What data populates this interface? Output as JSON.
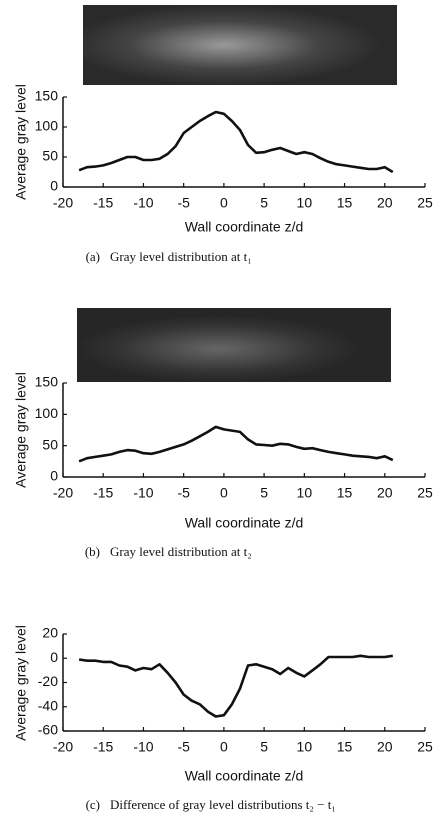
{
  "chart_data": [
    {
      "type": "line",
      "label": "(a)",
      "caption": "Gray level distribution at t₁",
      "xlabel": "Wall coordinate z/d",
      "ylabel": "Average gray level",
      "xlim": [
        -20,
        25
      ],
      "xticks": [
        -20,
        -15,
        -10,
        -5,
        0,
        5,
        10,
        15,
        20,
        25
      ],
      "ylim": [
        0,
        150
      ],
      "yticks": [
        0,
        50,
        100,
        150
      ],
      "color": "#111111",
      "x": [
        -18,
        -17,
        -16,
        -15,
        -14,
        -13,
        -12,
        -11,
        -10,
        -9,
        -8,
        -7,
        -6,
        -5,
        -4,
        -3,
        -2,
        -1,
        0,
        1,
        2,
        3,
        4,
        5,
        6,
        7,
        8,
        9,
        10,
        11,
        12,
        13,
        14,
        15,
        16,
        17,
        18,
        19,
        20,
        21
      ],
      "values": [
        28,
        33,
        34,
        36,
        40,
        45,
        50,
        50,
        45,
        45,
        47,
        55,
        68,
        90,
        100,
        110,
        118,
        125,
        122,
        110,
        95,
        70,
        57,
        58,
        62,
        65,
        60,
        55,
        58,
        55,
        48,
        42,
        38,
        36,
        34,
        32,
        30,
        30,
        33,
        25
      ]
    },
    {
      "type": "line",
      "label": "(b)",
      "caption": "Gray level distribution at t₂",
      "xlabel": "Wall coordinate z/d",
      "ylabel": "Average gray level",
      "xlim": [
        -20,
        25
      ],
      "xticks": [
        -20,
        -15,
        -10,
        -5,
        0,
        5,
        10,
        15,
        20,
        25
      ],
      "ylim": [
        0,
        150
      ],
      "yticks": [
        0,
        50,
        100,
        150
      ],
      "color": "#111111",
      "x": [
        -18,
        -17,
        -16,
        -15,
        -14,
        -13,
        -12,
        -11,
        -10,
        -9,
        -8,
        -7,
        -6,
        -5,
        -4,
        -3,
        -2,
        -1,
        0,
        1,
        2,
        3,
        4,
        5,
        6,
        7,
        8,
        9,
        10,
        11,
        12,
        13,
        14,
        15,
        16,
        17,
        18,
        19,
        20,
        21
      ],
      "values": [
        25,
        30,
        32,
        34,
        36,
        40,
        43,
        42,
        38,
        37,
        40,
        44,
        48,
        52,
        58,
        65,
        72,
        80,
        76,
        74,
        72,
        60,
        52,
        51,
        50,
        53,
        52,
        48,
        45,
        46,
        43,
        40,
        38,
        36,
        34,
        33,
        32,
        30,
        33,
        27
      ]
    },
    {
      "type": "line",
      "label": "(c)",
      "caption": "Difference of gray level distributions t₂ − t₁",
      "xlabel": "Wall coordinate z/d",
      "ylabel": "Average gray level",
      "xlim": [
        -20,
        25
      ],
      "xticks": [
        -20,
        -15,
        -10,
        -5,
        0,
        5,
        10,
        15,
        20,
        25
      ],
      "ylim": [
        -60,
        20
      ],
      "yticks": [
        -60,
        -40,
        -20,
        0,
        20
      ],
      "color": "#111111",
      "x": [
        -18,
        -17,
        -16,
        -15,
        -14,
        -13,
        -12,
        -11,
        -10,
        -9,
        -8,
        -7,
        -6,
        -5,
        -4,
        -3,
        -2,
        -1,
        0,
        1,
        2,
        3,
        4,
        5,
        6,
        7,
        8,
        9,
        10,
        11,
        12,
        13,
        14,
        15,
        16,
        17,
        18,
        19,
        20,
        21
      ],
      "values": [
        -1,
        -2,
        -2,
        -3,
        -3,
        -6,
        -7,
        -10,
        -8,
        -9,
        -5,
        -12,
        -20,
        -30,
        -35,
        -38,
        -44,
        -48,
        -47,
        -38,
        -25,
        -6,
        -5,
        -7,
        -9,
        -13,
        -8,
        -12,
        -15,
        -10,
        -5,
        1,
        1,
        1,
        1,
        2,
        1,
        1,
        1,
        2
      ]
    }
  ]
}
